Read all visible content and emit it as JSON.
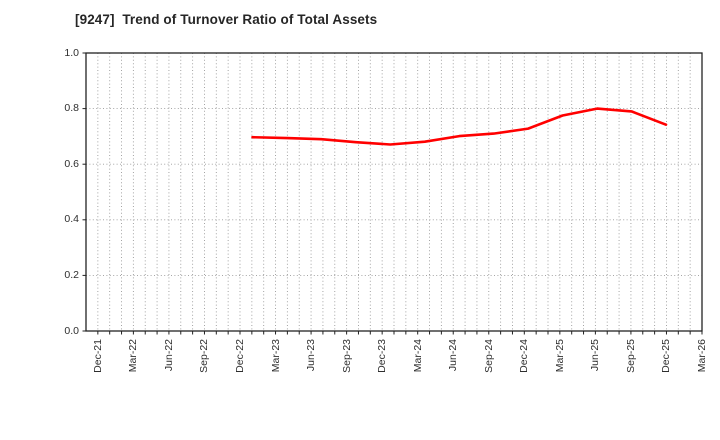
{
  "window": {
    "background": "#ffffff"
  },
  "chart_data": {
    "type": "line",
    "title": "[9247]  Trend of Turnover Ratio of Total Assets",
    "xlabel": "",
    "ylabel": "",
    "ylim": [
      0.0,
      1.0
    ],
    "y_tick_labels": [
      "1.0",
      "0.8",
      "0.6",
      "0.4",
      "0.2",
      "0.0"
    ],
    "x_tick_labels": [
      "Dec-21",
      "Mar-22",
      "Jun-22",
      "Sep-22",
      "Dec-22",
      "Mar-23",
      "Jun-23",
      "Sep-23",
      "Dec-23",
      "Mar-24",
      "Jun-24",
      "Sep-24",
      "Dec-24",
      "Mar-25",
      "Jun-25",
      "Sep-25",
      "Dec-25",
      "Mar-26"
    ],
    "grid": "dotted gray, vertical line every month, horizontal line every 0.2",
    "legend": "none",
    "categories": [
      "Dec-22",
      "Mar-23",
      "Jun-23",
      "Sep-23",
      "Dec-23",
      "Mar-24",
      "Jun-24",
      "Sep-24",
      "Dec-24",
      "Mar-25",
      "Jun-25",
      "Sep-25",
      "Dec-25"
    ],
    "series": [
      {
        "name": "Turnover Ratio of Total Assets",
        "color": "#ff0000",
        "values": [
          0.697,
          0.694,
          0.69,
          0.679,
          0.671,
          0.681,
          0.701,
          0.71,
          0.728,
          0.775,
          0.8,
          0.79,
          0.742
        ]
      }
    ]
  },
  "colors": {
    "line": "#ff0000",
    "grid": "#9a9a9a",
    "spine": "#222222",
    "tick_text": "#2e2e2e",
    "title_text": "#262626",
    "background": "#ffffff"
  }
}
